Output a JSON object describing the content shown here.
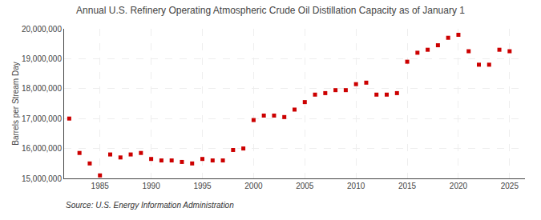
{
  "chart_data": {
    "type": "scatter",
    "title": "Annual U.S. Refinery Operating Atmospheric Crude Oil Distillation Capacity as of January 1",
    "ylabel": "Barrels per Stream Day",
    "annotations": [
      "Source: U.S. Energy Information Administration"
    ],
    "color": "#cc0000",
    "marker": "square",
    "grid": true,
    "x": [
      1982,
      1983,
      1984,
      1985,
      1986,
      1987,
      1988,
      1989,
      1990,
      1991,
      1992,
      1993,
      1994,
      1995,
      1996,
      1997,
      1998,
      1999,
      2000,
      2001,
      2002,
      2003,
      2004,
      2005,
      2006,
      2007,
      2008,
      2009,
      2010,
      2011,
      2012,
      2013,
      2014,
      2015,
      2016,
      2017,
      2018,
      2019,
      2020,
      2021,
      2022,
      2023,
      2024,
      2025
    ],
    "values": [
      17000000,
      15850000,
      15500000,
      15100000,
      15800000,
      15700000,
      15800000,
      15850000,
      15650000,
      15600000,
      15600000,
      15550000,
      15500000,
      15650000,
      15600000,
      15600000,
      15950000,
      16000000,
      16950000,
      17100000,
      17100000,
      17050000,
      17300000,
      17550000,
      17800000,
      17850000,
      17950000,
      17950000,
      18150000,
      18200000,
      17800000,
      17800000,
      17850000,
      18900000,
      19200000,
      19300000,
      19450000,
      19700000,
      19800000,
      19250000,
      18800000,
      18800000,
      19300000,
      19250000
    ],
    "xlim": [
      1981.5,
      2026.5
    ],
    "xticks": [
      1985,
      1990,
      1995,
      2000,
      2005,
      2010,
      2015,
      2020,
      2025
    ],
    "ylim": [
      15000000,
      20000000
    ],
    "yticks": [
      {
        "value": 15000000,
        "label": "15,000,000"
      },
      {
        "value": 16000000,
        "label": "16,000,000"
      },
      {
        "value": 17000000,
        "label": "17,000,000"
      },
      {
        "value": 18000000,
        "label": "18,000,000"
      },
      {
        "value": 19000000,
        "label": "19,000,000"
      },
      {
        "value": 20000000,
        "label": "20,000,000"
      }
    ]
  }
}
